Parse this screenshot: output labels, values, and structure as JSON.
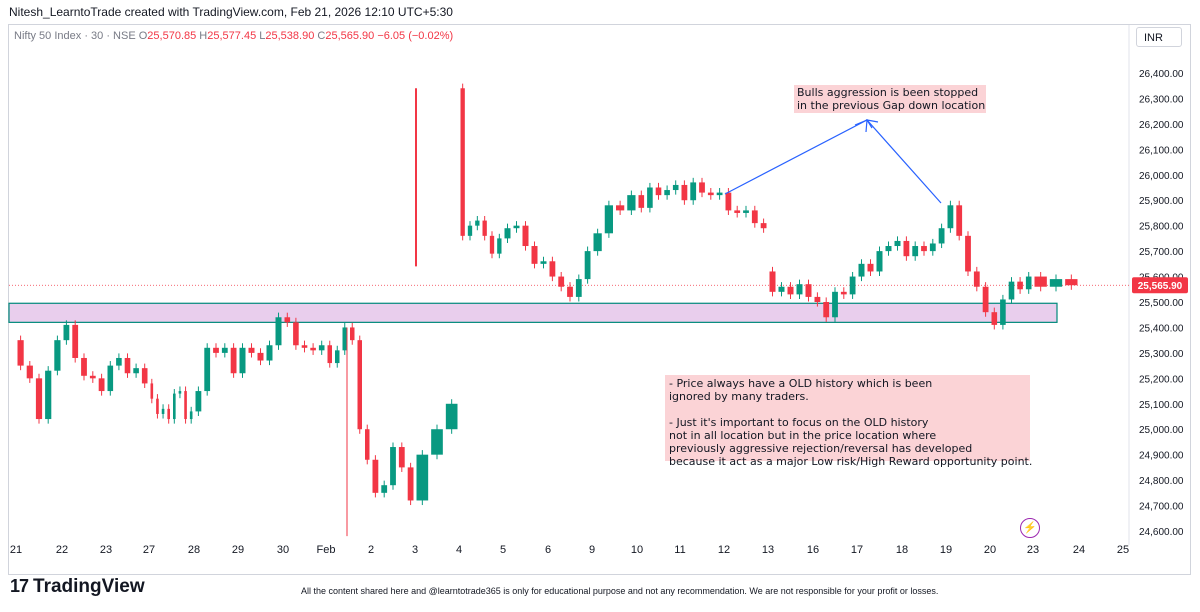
{
  "header": {
    "credit": "Nitesh_LearntoTrade created with TradingView.com, Feb 21, 2026 12:10 UTC+5:30"
  },
  "legend": {
    "symbol": "Nifty 50 Index · 30 · NSE",
    "o_label": "O",
    "o_value": "25,570.85",
    "h_label": "H",
    "h_value": "25,577.45",
    "l_label": "L",
    "l_value": "25,538.90",
    "c_label": "C",
    "c_value": "25,565.90",
    "change": "−6.05 (−0.02%)"
  },
  "currency": "INR",
  "colors": {
    "up": "#089981",
    "down": "#f23645",
    "zone_fill": "#e1bee7",
    "zone_border": "#00897b",
    "arrow": "#2962ff",
    "note_bg": "#fbd3d6"
  },
  "annotations": {
    "top_note": "Bulls aggression is been stopped\nin the previous Gap down location",
    "bottom_note": "- Price always have a OLD history which is been\nignored by many traders.\n\n- Just it's important to focus on the OLD history\nnot in all location but in the price location where\npreviously aggressive rejection/reversal has developed\nbecause it act as a major Low risk/High Reward opportunity point."
  },
  "footer": {
    "logo_mark": "17",
    "logo_text": "TradingView",
    "disclaimer": "All the content shared here and @learntotrade365 is only for educational purpose and not any recommendation. We are not responsible for your profit or losses."
  },
  "chart_data": {
    "type": "candlestick",
    "title": "",
    "xlabel": "",
    "ylabel": "",
    "ylim": [
      24540,
      26520
    ],
    "y_ticks": [
      24600,
      24700,
      24800,
      24900,
      25000,
      25100,
      25200,
      25300,
      25400,
      25500,
      25600,
      25700,
      25800,
      25900,
      26000,
      26100,
      26200,
      26300,
      26400
    ],
    "y_tick_labels": [
      "24,600.00",
      "24,700.00",
      "24,800.00",
      "24,900.00",
      "25,000.00",
      "25,100.00",
      "25,200.00",
      "25,300.00",
      "25,400.00",
      "25,500.00",
      "25,600.00",
      "25,700.00",
      "25,800.00",
      "25,900.00",
      "26,000.00",
      "26,100.00",
      "26,200.00",
      "26,300.00",
      "26,400.00"
    ],
    "x_tick_labels": [
      "21",
      "22",
      "23",
      "27",
      "28",
      "29",
      "30",
      "Feb",
      "2",
      "3",
      "4",
      "5",
      "6",
      "9",
      "10",
      "11",
      "12",
      "13",
      "16",
      "17",
      "18",
      "19",
      "20",
      "23",
      "24",
      "25"
    ],
    "last_price": 25565.9,
    "last_price_label": "25,565.90",
    "zone": {
      "low": 25420,
      "high": 25495
    },
    "days": [
      {
        "label": "21",
        "pts": [
          [
            25350,
            25250
          ],
          [
            25180,
            25200
          ],
          [
            25010,
            25040
          ],
          [
            25150,
            25230
          ],
          [
            25270,
            25350
          ]
        ]
      },
      {
        "label": "22",
        "pts": [
          [
            25350,
            25410
          ],
          [
            25300,
            25280
          ],
          [
            25260,
            25210
          ],
          [
            25150,
            25200
          ],
          [
            25180,
            25150
          ]
        ]
      },
      {
        "label": "23",
        "pts": [
          [
            25150,
            25250
          ],
          [
            25310,
            25280
          ],
          [
            25180,
            25220
          ],
          [
            25330,
            25240
          ],
          [
            25150,
            25180
          ]
        ]
      },
      {
        "label": "27",
        "pts": [
          [
            25180,
            25120
          ],
          [
            25040,
            25060
          ],
          [
            24960,
            25080
          ],
          [
            25160,
            25040
          ],
          [
            25060,
            25140
          ],
          [
            25280,
            25150
          ],
          [
            25080,
            25040
          ],
          [
            25010,
            25070
          ]
        ]
      },
      {
        "label": "28",
        "pts": [
          [
            25070,
            25150
          ],
          [
            25220,
            25320
          ],
          [
            25380,
            25300
          ],
          [
            25240,
            25320
          ],
          [
            25300,
            25220
          ]
        ]
      },
      {
        "label": "29",
        "pts": [
          [
            25220,
            25320
          ],
          [
            25360,
            25300
          ],
          [
            25230,
            25270
          ],
          [
            25350,
            25330
          ],
          [
            25380,
            25440
          ]
        ]
      },
      {
        "label": "30",
        "pts": [
          [
            25440,
            25420
          ],
          [
            25390,
            25330
          ],
          [
            25230,
            25320
          ],
          [
            25300,
            25310
          ],
          [
            25260,
            25330
          ]
        ]
      },
      {
        "label": "Feb",
        "pts": [
          [
            25330,
            25260
          ],
          [
            25280,
            25310
          ],
          [
            25340,
            25400
          ],
          [
            25420,
            25350
          ],
          [
            25160,
            25000
          ],
          [
            24900,
            24880
          ]
        ]
      },
      {
        "label": "2",
        "pts": [
          [
            24880,
            24750
          ],
          [
            24700,
            24780
          ],
          [
            24850,
            24930
          ],
          [
            24980,
            24850
          ],
          [
            24760,
            24720
          ]
        ]
      },
      {
        "label": "3",
        "pts": [
          [
            24720,
            24900
          ],
          [
            24950,
            25000
          ],
          [
            25050,
            25100
          ]
        ]
      },
      {
        "label": "4",
        "pts": [
          [
            26340,
            25760
          ],
          [
            25720,
            25800
          ],
          [
            25840,
            25820
          ],
          [
            25780,
            25760
          ],
          [
            25740,
            25690
          ],
          [
            25760,
            25750
          ]
        ]
      },
      {
        "label": "5",
        "pts": [
          [
            25750,
            25790
          ],
          [
            25760,
            25800
          ],
          [
            25830,
            25720
          ],
          [
            25700,
            25650
          ],
          [
            25620,
            25660
          ]
        ]
      },
      {
        "label": "6",
        "pts": [
          [
            25660,
            25600
          ],
          [
            25620,
            25560
          ],
          [
            25520,
            25520
          ],
          [
            25530,
            25590
          ],
          [
            25620,
            25700
          ]
        ]
      },
      {
        "label": "9",
        "pts": [
          [
            25700,
            25770
          ],
          [
            25820,
            25880
          ],
          [
            25840,
            25860
          ],
          [
            25850,
            25920
          ]
        ]
      },
      {
        "label": "10",
        "pts": [
          [
            25920,
            25870
          ],
          [
            25860,
            25950
          ],
          [
            25990,
            25920
          ],
          [
            25960,
            25940
          ],
          [
            25900,
            25960
          ]
        ]
      },
      {
        "label": "11",
        "pts": [
          [
            25960,
            25900
          ],
          [
            25930,
            25970
          ],
          [
            25950,
            25930
          ],
          [
            25960,
            25920
          ],
          [
            25950,
            25930
          ]
        ]
      },
      {
        "label": "12",
        "pts": [
          [
            25930,
            25860
          ],
          [
            25880,
            25850
          ],
          [
            25830,
            25860
          ],
          [
            25840,
            25810
          ],
          [
            25780,
            25790
          ]
        ]
      },
      {
        "label": "13",
        "pts": [
          [
            25620,
            25540
          ],
          [
            25510,
            25560
          ],
          [
            25580,
            25530
          ],
          [
            25520,
            25570
          ],
          [
            25550,
            25520
          ]
        ]
      },
      {
        "label": "16",
        "pts": [
          [
            25520,
            25500
          ],
          [
            25450,
            25440
          ],
          [
            25470,
            25540
          ],
          [
            25580,
            25530
          ],
          [
            25540,
            25600
          ]
        ]
      },
      {
        "label": "17",
        "pts": [
          [
            25600,
            25650
          ],
          [
            25680,
            25620
          ],
          [
            25650,
            25700
          ],
          [
            25730,
            25720
          ],
          [
            25700,
            25740
          ]
        ]
      },
      {
        "label": "18",
        "pts": [
          [
            25740,
            25680
          ],
          [
            25670,
            25720
          ],
          [
            25760,
            25700
          ],
          [
            25680,
            25730
          ],
          [
            25760,
            25790
          ]
        ]
      },
      {
        "label": "19",
        "pts": [
          [
            25790,
            25880
          ],
          [
            25830,
            25760
          ],
          [
            25700,
            25620
          ],
          [
            25610,
            25560
          ],
          [
            25530,
            25460
          ]
        ]
      },
      {
        "label": "20",
        "pts": [
          [
            25460,
            25410
          ],
          [
            25420,
            25510
          ],
          [
            25560,
            25580
          ],
          [
            25590,
            25550
          ],
          [
            25570,
            25600
          ]
        ]
      },
      {
        "label": "23",
        "pts": [
          [
            25600,
            25560
          ],
          [
            25570,
            25590
          ],
          [
            25580,
            25565.9
          ]
        ]
      }
    ]
  }
}
